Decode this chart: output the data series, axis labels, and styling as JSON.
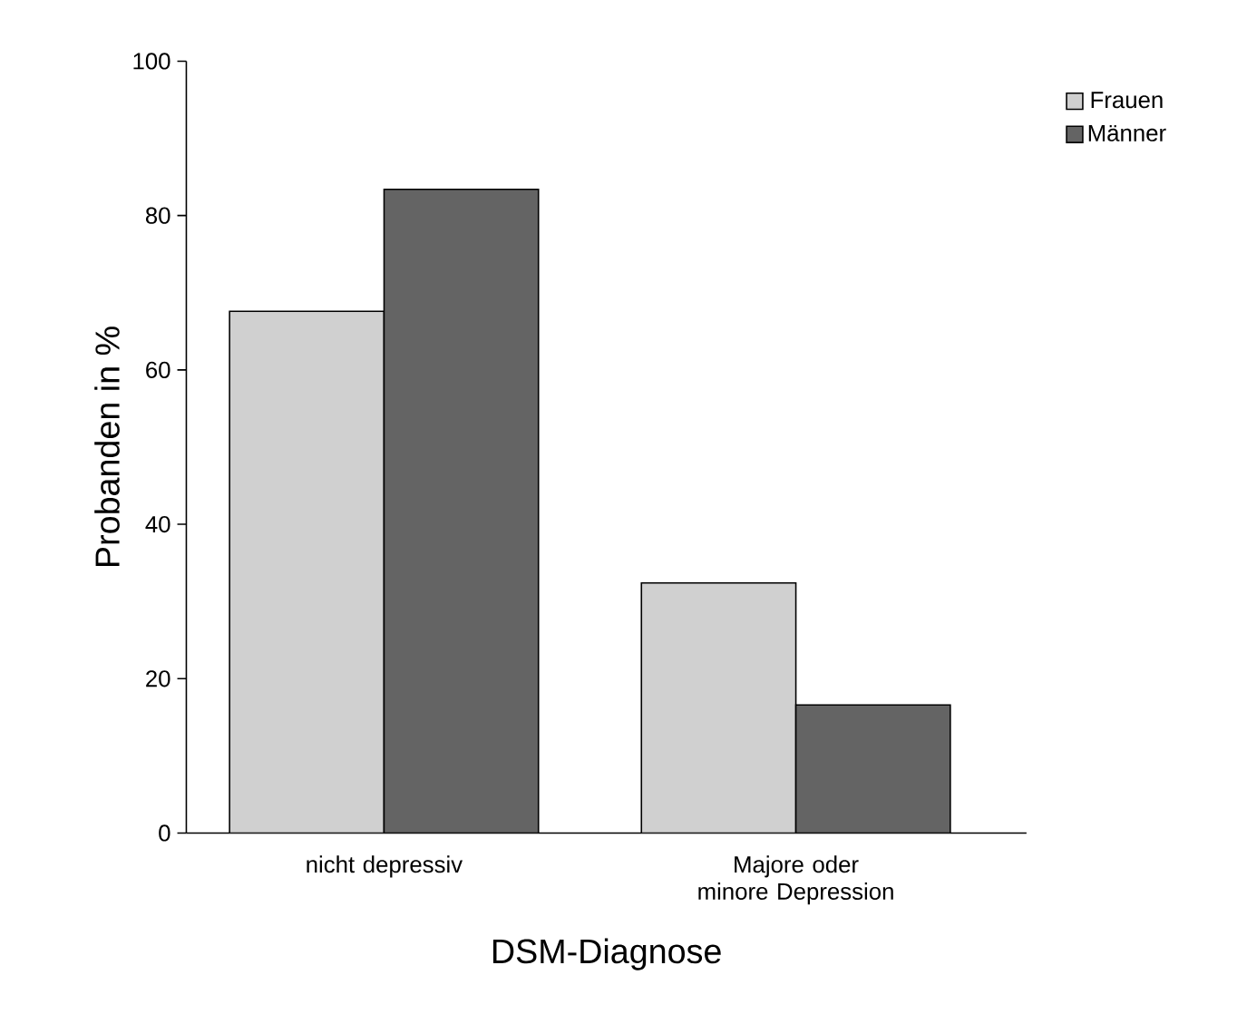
{
  "chart_data": {
    "type": "bar",
    "xlabel": "DSM-Diagnose",
    "ylabel": "Probanden in %",
    "categories": [
      "nicht depressiv",
      "Majore oder minore Depression"
    ],
    "series": [
      {
        "name": "Frauen",
        "color": "#d0d0d0",
        "values": [
          67.6,
          32.4
        ]
      },
      {
        "name": "Männer",
        "color": "#646464",
        "values": [
          83.4,
          16.6
        ]
      }
    ],
    "ylim": [
      0,
      100
    ],
    "yticks": [
      0,
      20,
      40,
      60,
      80,
      100
    ],
    "legend": "top right"
  }
}
